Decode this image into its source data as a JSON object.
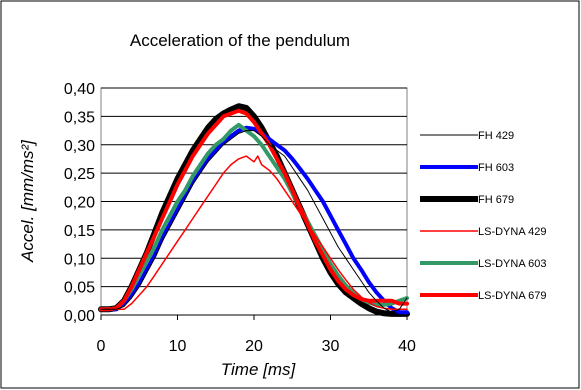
{
  "chart_data": {
    "type": "line",
    "title": "Acceleration of the pendulum",
    "xlabel": "Time [ms]",
    "ylabel": "Accel. [mm/ms²]",
    "xlim": [
      0,
      40
    ],
    "ylim": [
      0,
      0.4
    ],
    "xticks": [
      0,
      10,
      20,
      30,
      40
    ],
    "yticks": [
      0,
      0.05,
      0.1,
      0.15,
      0.2,
      0.25,
      0.3,
      0.35,
      0.4
    ],
    "xtick_labels": [
      "0",
      "10",
      "20",
      "30",
      "40"
    ],
    "ytick_labels": [
      "0,00",
      "0,05",
      "0,10",
      "0,15",
      "0,20",
      "0,25",
      "0,30",
      "0,35",
      "0,40"
    ],
    "grid": "horizontal",
    "legend_position": "right",
    "series": [
      {
        "name": "FH 429",
        "color": "#000000",
        "line_width": 1,
        "points": [
          [
            0,
            0.01
          ],
          [
            1,
            0.01
          ],
          [
            2,
            0.01
          ],
          [
            3,
            0.015
          ],
          [
            4,
            0.03
          ],
          [
            5,
            0.05
          ],
          [
            6,
            0.075
          ],
          [
            7,
            0.1
          ],
          [
            8,
            0.13
          ],
          [
            9,
            0.155
          ],
          [
            10,
            0.18
          ],
          [
            11,
            0.205
          ],
          [
            12,
            0.23
          ],
          [
            13,
            0.25
          ],
          [
            14,
            0.27
          ],
          [
            15,
            0.285
          ],
          [
            16,
            0.3
          ],
          [
            17,
            0.31
          ],
          [
            18,
            0.32
          ],
          [
            19,
            0.325
          ],
          [
            20,
            0.325
          ],
          [
            21,
            0.315
          ],
          [
            22,
            0.3
          ],
          [
            23,
            0.29
          ],
          [
            24,
            0.28
          ],
          [
            25,
            0.26
          ],
          [
            26,
            0.24
          ],
          [
            27,
            0.22
          ],
          [
            28,
            0.195
          ],
          [
            29,
            0.17
          ],
          [
            30,
            0.145
          ],
          [
            31,
            0.12
          ],
          [
            32,
            0.1
          ],
          [
            33,
            0.08
          ],
          [
            34,
            0.06
          ],
          [
            35,
            0.04
          ],
          [
            36,
            0.025
          ],
          [
            37,
            0.012
          ],
          [
            38,
            0.005
          ],
          [
            39,
            0.01
          ],
          [
            40,
            0.03
          ]
        ]
      },
      {
        "name": "FH 603",
        "color": "#0000ff",
        "line_width": 4,
        "points": [
          [
            0,
            0.01
          ],
          [
            1,
            0.01
          ],
          [
            2,
            0.01
          ],
          [
            3,
            0.02
          ],
          [
            4,
            0.035
          ],
          [
            5,
            0.055
          ],
          [
            6,
            0.08
          ],
          [
            7,
            0.105
          ],
          [
            8,
            0.135
          ],
          [
            9,
            0.16
          ],
          [
            10,
            0.185
          ],
          [
            11,
            0.21
          ],
          [
            12,
            0.235
          ],
          [
            13,
            0.255
          ],
          [
            14,
            0.275
          ],
          [
            15,
            0.29
          ],
          [
            16,
            0.305
          ],
          [
            17,
            0.315
          ],
          [
            18,
            0.325
          ],
          [
            19,
            0.33
          ],
          [
            20,
            0.328
          ],
          [
            21,
            0.32
          ],
          [
            22,
            0.31
          ],
          [
            23,
            0.3
          ],
          [
            24,
            0.29
          ],
          [
            25,
            0.275
          ],
          [
            26,
            0.258
          ],
          [
            27,
            0.24
          ],
          [
            28,
            0.22
          ],
          [
            29,
            0.2
          ],
          [
            30,
            0.175
          ],
          [
            31,
            0.15
          ],
          [
            32,
            0.125
          ],
          [
            33,
            0.1
          ],
          [
            34,
            0.08
          ],
          [
            35,
            0.058
          ],
          [
            36,
            0.04
          ],
          [
            37,
            0.025
          ],
          [
            38,
            0.012
          ],
          [
            39,
            0.005
          ],
          [
            40,
            0.005
          ]
        ]
      },
      {
        "name": "FH 679",
        "color": "#000000",
        "line_width": 6,
        "points": [
          [
            0,
            0.01
          ],
          [
            1,
            0.01
          ],
          [
            2,
            0.012
          ],
          [
            3,
            0.025
          ],
          [
            4,
            0.05
          ],
          [
            5,
            0.08
          ],
          [
            6,
            0.11
          ],
          [
            7,
            0.145
          ],
          [
            8,
            0.18
          ],
          [
            9,
            0.21
          ],
          [
            10,
            0.24
          ],
          [
            11,
            0.265
          ],
          [
            12,
            0.29
          ],
          [
            13,
            0.31
          ],
          [
            14,
            0.33
          ],
          [
            15,
            0.345
          ],
          [
            16,
            0.355
          ],
          [
            17,
            0.362
          ],
          [
            18,
            0.368
          ],
          [
            19,
            0.365
          ],
          [
            20,
            0.35
          ],
          [
            21,
            0.33
          ],
          [
            22,
            0.305
          ],
          [
            23,
            0.28
          ],
          [
            24,
            0.25
          ],
          [
            25,
            0.22
          ],
          [
            26,
            0.19
          ],
          [
            27,
            0.16
          ],
          [
            28,
            0.13
          ],
          [
            29,
            0.1
          ],
          [
            30,
            0.075
          ],
          [
            31,
            0.055
          ],
          [
            32,
            0.04
          ],
          [
            33,
            0.03
          ],
          [
            34,
            0.02
          ],
          [
            35,
            0.012
          ],
          [
            36,
            0.006
          ],
          [
            37,
            0.003
          ],
          [
            38,
            0.002
          ],
          [
            39,
            0.002
          ],
          [
            40,
            0.002
          ]
        ]
      },
      {
        "name": "LS-DYNA 429",
        "color": "#ff0000",
        "line_width": 1.5,
        "points": [
          [
            0,
            0.01
          ],
          [
            1,
            0.01
          ],
          [
            2,
            0.01
          ],
          [
            3,
            0.01
          ],
          [
            4,
            0.02
          ],
          [
            5,
            0.035
          ],
          [
            6,
            0.05
          ],
          [
            7,
            0.07
          ],
          [
            8,
            0.09
          ],
          [
            9,
            0.11
          ],
          [
            10,
            0.13
          ],
          [
            11,
            0.15
          ],
          [
            12,
            0.17
          ],
          [
            13,
            0.19
          ],
          [
            14,
            0.21
          ],
          [
            15,
            0.23
          ],
          [
            16,
            0.25
          ],
          [
            17,
            0.265
          ],
          [
            18,
            0.275
          ],
          [
            19,
            0.28
          ],
          [
            20,
            0.27
          ],
          [
            20.5,
            0.28
          ],
          [
            21,
            0.265
          ],
          [
            22,
            0.255
          ],
          [
            23,
            0.24
          ],
          [
            24,
            0.22
          ],
          [
            25,
            0.2
          ],
          [
            26,
            0.18
          ],
          [
            27,
            0.16
          ],
          [
            28,
            0.14
          ],
          [
            29,
            0.12
          ],
          [
            30,
            0.1
          ],
          [
            31,
            0.08
          ],
          [
            32,
            0.062
          ],
          [
            33,
            0.045
          ],
          [
            34,
            0.032
          ],
          [
            35,
            0.022
          ],
          [
            36,
            0.015
          ],
          [
            37,
            0.012
          ],
          [
            38,
            0.01
          ],
          [
            39,
            0.01
          ],
          [
            40,
            0.01
          ]
        ]
      },
      {
        "name": "LS-DYNA 603",
        "color": "#339966",
        "line_width": 4,
        "points": [
          [
            0,
            0.01
          ],
          [
            1,
            0.01
          ],
          [
            2,
            0.012
          ],
          [
            3,
            0.025
          ],
          [
            4,
            0.045
          ],
          [
            5,
            0.07
          ],
          [
            6,
            0.095
          ],
          [
            7,
            0.12
          ],
          [
            8,
            0.15
          ],
          [
            9,
            0.175
          ],
          [
            10,
            0.2
          ],
          [
            11,
            0.22
          ],
          [
            12,
            0.245
          ],
          [
            13,
            0.265
          ],
          [
            14,
            0.285
          ],
          [
            15,
            0.3
          ],
          [
            16,
            0.31
          ],
          [
            17,
            0.325
          ],
          [
            18,
            0.335
          ],
          [
            19,
            0.325
          ],
          [
            20,
            0.315
          ],
          [
            21,
            0.3
          ],
          [
            22,
            0.28
          ],
          [
            23,
            0.26
          ],
          [
            24,
            0.24
          ],
          [
            25,
            0.215
          ],
          [
            26,
            0.19
          ],
          [
            27,
            0.165
          ],
          [
            28,
            0.14
          ],
          [
            29,
            0.115
          ],
          [
            30,
            0.09
          ],
          [
            31,
            0.07
          ],
          [
            32,
            0.052
          ],
          [
            33,
            0.038
          ],
          [
            34,
            0.028
          ],
          [
            35,
            0.022
          ],
          [
            36,
            0.018
          ],
          [
            37,
            0.018
          ],
          [
            38,
            0.02
          ],
          [
            39,
            0.025
          ],
          [
            40,
            0.03
          ]
        ]
      },
      {
        "name": "LS-DYNA 679",
        "color": "#ff0000",
        "line_width": 4,
        "points": [
          [
            0,
            0.01
          ],
          [
            1,
            0.01
          ],
          [
            2,
            0.012
          ],
          [
            3,
            0.025
          ],
          [
            4,
            0.05
          ],
          [
            5,
            0.08
          ],
          [
            6,
            0.11
          ],
          [
            7,
            0.14
          ],
          [
            8,
            0.17
          ],
          [
            9,
            0.2
          ],
          [
            10,
            0.23
          ],
          [
            11,
            0.255
          ],
          [
            12,
            0.28
          ],
          [
            13,
            0.3
          ],
          [
            14,
            0.32
          ],
          [
            15,
            0.335
          ],
          [
            16,
            0.35
          ],
          [
            17,
            0.355
          ],
          [
            18,
            0.36
          ],
          [
            19,
            0.355
          ],
          [
            20,
            0.34
          ],
          [
            21,
            0.32
          ],
          [
            22,
            0.3
          ],
          [
            23,
            0.275
          ],
          [
            24,
            0.25
          ],
          [
            25,
            0.22
          ],
          [
            26,
            0.19
          ],
          [
            27,
            0.16
          ],
          [
            28,
            0.13
          ],
          [
            29,
            0.105
          ],
          [
            30,
            0.08
          ],
          [
            31,
            0.06
          ],
          [
            32,
            0.045
          ],
          [
            33,
            0.035
          ],
          [
            34,
            0.028
          ],
          [
            35,
            0.025
          ],
          [
            36,
            0.025
          ],
          [
            37,
            0.025
          ],
          [
            38,
            0.025
          ],
          [
            39,
            0.02
          ],
          [
            40,
            0.02
          ]
        ]
      }
    ]
  }
}
